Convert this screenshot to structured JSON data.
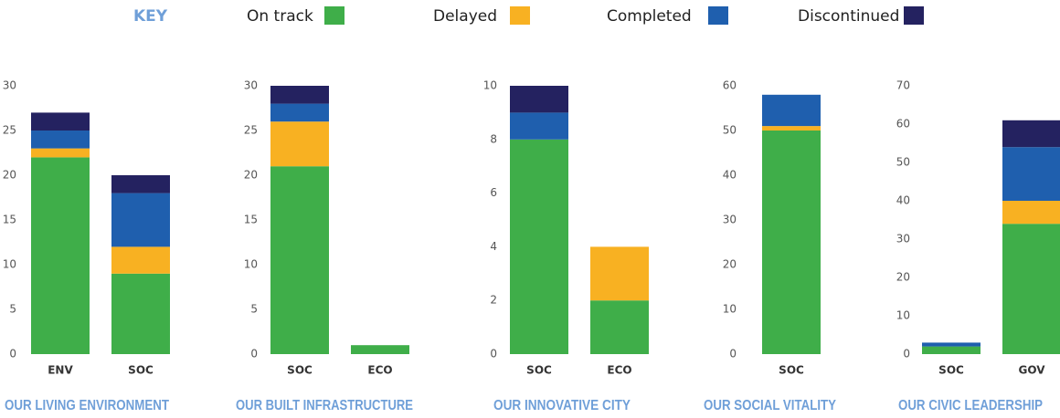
{
  "key_title": "KEY",
  "chart_data": [
    {
      "type": "stacked_bar",
      "title": "OUR LIVING ENVIRONMENT",
      "categories": [
        "ENV",
        "SOC"
      ],
      "ylim": [
        0,
        30
      ],
      "yticks": [
        0,
        5,
        10,
        15,
        20,
        25,
        30
      ],
      "series": [
        {
          "name": "On track",
          "color": "#3fae49",
          "values": [
            22,
            9
          ]
        },
        {
          "name": "Delayed",
          "color": "#f8b122",
          "values": [
            1,
            3
          ]
        },
        {
          "name": "Completed",
          "color": "#1f5fae",
          "values": [
            2,
            6
          ]
        },
        {
          "name": "Discontinued",
          "color": "#242260",
          "values": [
            2,
            2
          ]
        }
      ]
    },
    {
      "type": "stacked_bar",
      "title": "OUR BUILT INFRASTRUCTURE",
      "categories": [
        "SOC",
        "ECO"
      ],
      "ylim": [
        0,
        30
      ],
      "yticks": [
        0,
        5,
        10,
        15,
        20,
        25,
        30
      ],
      "series": [
        {
          "name": "On track",
          "color": "#3fae49",
          "values": [
            21,
            1
          ]
        },
        {
          "name": "Delayed",
          "color": "#f8b122",
          "values": [
            5,
            0
          ]
        },
        {
          "name": "Completed",
          "color": "#1f5fae",
          "values": [
            2,
            0
          ]
        },
        {
          "name": "Discontinued",
          "color": "#242260",
          "values": [
            2,
            0
          ]
        }
      ]
    },
    {
      "type": "stacked_bar",
      "title": "OUR INNOVATIVE CITY",
      "categories": [
        "SOC",
        "ECO"
      ],
      "ylim": [
        0,
        10
      ],
      "yticks": [
        0,
        2,
        4,
        6,
        8,
        10
      ],
      "series": [
        {
          "name": "On track",
          "color": "#3fae49",
          "values": [
            8,
            2
          ]
        },
        {
          "name": "Delayed",
          "color": "#f8b122",
          "values": [
            0,
            2
          ]
        },
        {
          "name": "Completed",
          "color": "#1f5fae",
          "values": [
            1,
            0
          ]
        },
        {
          "name": "Discontinued",
          "color": "#242260",
          "values": [
            1,
            0
          ]
        }
      ]
    },
    {
      "type": "stacked_bar",
      "title": "OUR SOCIAL VITALITY",
      "categories": [
        "SOC"
      ],
      "ylim": [
        0,
        60
      ],
      "yticks": [
        0,
        10,
        20,
        30,
        40,
        50,
        60
      ],
      "series": [
        {
          "name": "On track",
          "color": "#3fae49",
          "values": [
            50
          ]
        },
        {
          "name": "Delayed",
          "color": "#f8b122",
          "values": [
            1
          ]
        },
        {
          "name": "Completed",
          "color": "#1f5fae",
          "values": [
            7
          ]
        },
        {
          "name": "Discontinued",
          "color": "#242260",
          "values": [
            0
          ]
        }
      ]
    },
    {
      "type": "stacked_bar",
      "title": "OUR CIVIC LEADERSHIP",
      "categories": [
        "SOC",
        "GOV"
      ],
      "ylim": [
        0,
        70
      ],
      "yticks": [
        0,
        10,
        20,
        30,
        40,
        50,
        60,
        70
      ],
      "series": [
        {
          "name": "On track",
          "color": "#3fae49",
          "values": [
            2,
            34
          ]
        },
        {
          "name": "Delayed",
          "color": "#f8b122",
          "values": [
            0,
            6
          ]
        },
        {
          "name": "Completed",
          "color": "#1f5fae",
          "values": [
            1,
            14
          ]
        },
        {
          "name": "Discontinued",
          "color": "#242260",
          "values": [
            0,
            7
          ]
        }
      ]
    }
  ]
}
